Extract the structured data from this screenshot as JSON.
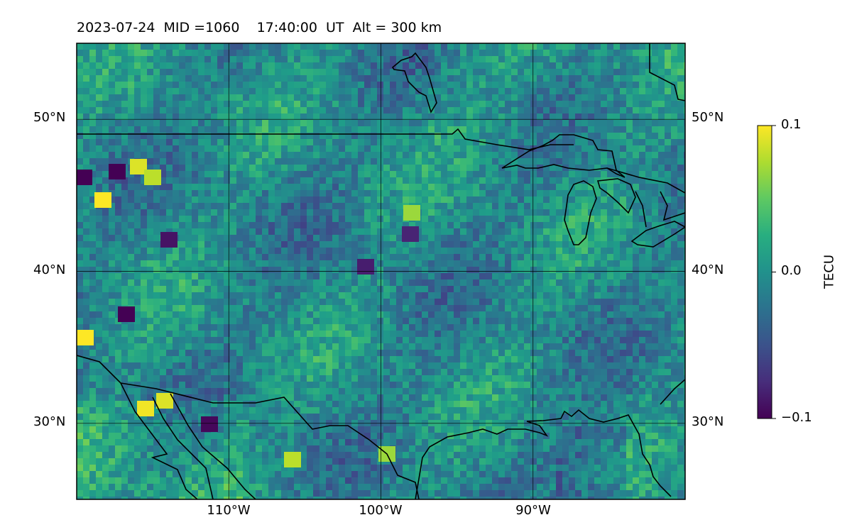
{
  "title": "2023-07-24  MID =1060    17:40:00  UT  Alt = 300 km",
  "map": {
    "lon_range": [
      -120,
      -80
    ],
    "lat_range": [
      25,
      55
    ],
    "lat_ticks": [
      {
        "value": 50,
        "label": "50°N"
      },
      {
        "value": 40,
        "label": "40°N"
      },
      {
        "value": 30,
        "label": "30°N"
      }
    ],
    "lon_ticks": [
      {
        "value": -110,
        "label": "110°W"
      },
      {
        "value": -100,
        "label": "100°W"
      },
      {
        "value": -90,
        "label": "90°W"
      }
    ],
    "gridlines": true,
    "field_colormap": "viridis",
    "coastline_color": "#000000"
  },
  "colorbar": {
    "label": "TECU",
    "range": [
      -0.1,
      0.1
    ],
    "ticks": [
      {
        "value": 0.1,
        "label": "0.1"
      },
      {
        "value": 0.0,
        "label": "0.0"
      },
      {
        "value": -0.1,
        "label": "−0.1"
      }
    ]
  }
}
